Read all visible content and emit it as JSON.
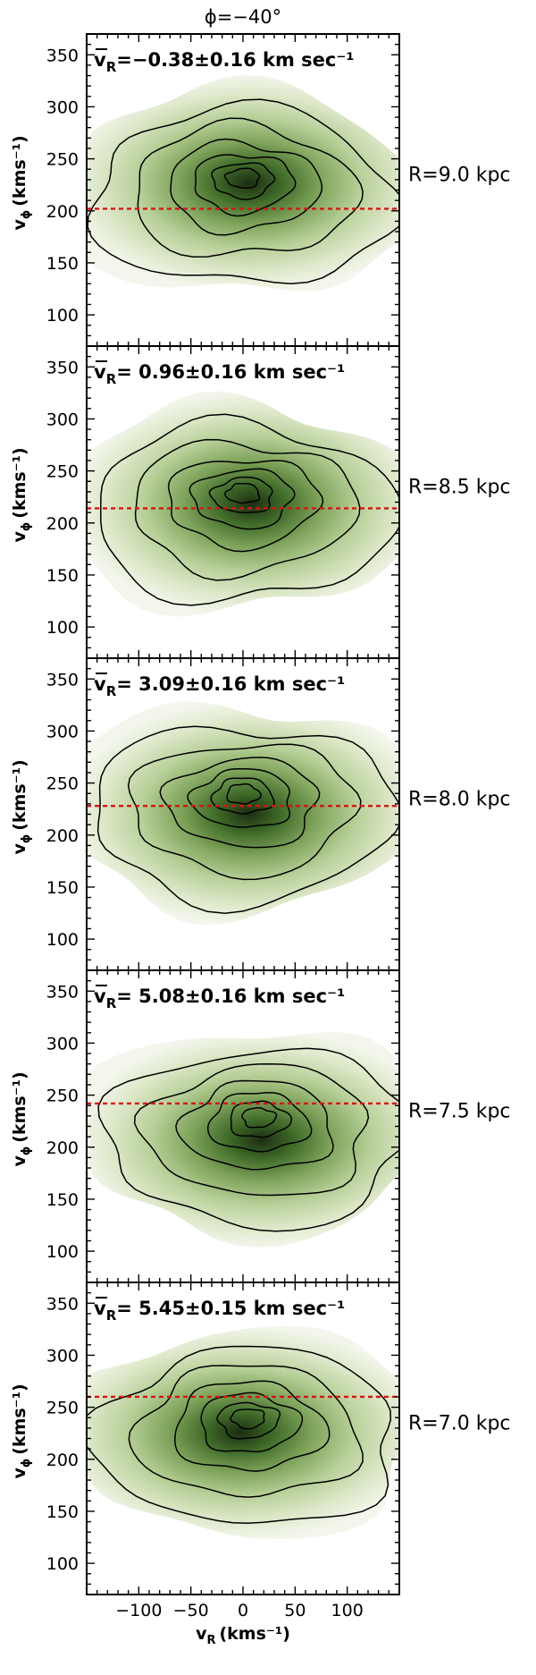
{
  "title": "ϕ=−40°",
  "x_label": "v",
  "x_label_sub": "R",
  "x_label_unit": "(kms⁻¹)",
  "y_label": "v",
  "y_label_sub": "ϕ",
  "y_label_unit": "(kms⁻¹)",
  "mean_prefix": "v",
  "mean_sub": "R",
  "mean_unit": "km sec⁻¹",
  "colors": {
    "fill_light": "#eef3e3",
    "fill_dark": "#1c2d12",
    "contour": "#000000",
    "ref_line": "#dd1111"
  },
  "chart_data": [
    {
      "type": "heatmap",
      "panel": 1,
      "radius_label": "R=9.0 kpc",
      "mean_value": "=−0.38±0.16",
      "xlim": [
        -150,
        150
      ],
      "ylim": [
        70,
        370
      ],
      "x_ticks": [
        -100,
        -50,
        0,
        50,
        100
      ],
      "x_tick_labels": [
        "−100",
        "−50",
        "0",
        "50",
        "100"
      ],
      "y_ticks": [
        100,
        150,
        200,
        250,
        300,
        350
      ],
      "reference_v_phi": 202,
      "density_peak": [
        0,
        225
      ]
    },
    {
      "type": "heatmap",
      "panel": 2,
      "radius_label": "R=8.5 kpc",
      "mean_value": "= 0.96±0.16",
      "xlim": [
        -150,
        150
      ],
      "ylim": [
        70,
        370
      ],
      "x_ticks": [
        -100,
        -50,
        0,
        50,
        100
      ],
      "x_tick_labels": [
        "−100",
        "−50",
        "0",
        "50",
        "100"
      ],
      "y_ticks": [
        100,
        150,
        200,
        250,
        300,
        350
      ],
      "reference_v_phi": 214,
      "density_peak": [
        0,
        222
      ]
    },
    {
      "type": "heatmap",
      "panel": 3,
      "radius_label": "R=8.0 kpc",
      "mean_value": "= 3.09±0.16",
      "xlim": [
        -150,
        150
      ],
      "ylim": [
        70,
        370
      ],
      "x_ticks": [
        -100,
        -50,
        0,
        50,
        100
      ],
      "x_tick_labels": [
        "−100",
        "−50",
        "0",
        "50",
        "100"
      ],
      "y_ticks": [
        100,
        150,
        200,
        250,
        300,
        350
      ],
      "reference_v_phi": 228,
      "density_peak": [
        0,
        233
      ]
    },
    {
      "type": "heatmap",
      "panel": 4,
      "radius_label": "R=7.5 kpc",
      "mean_value": "= 5.08±0.16",
      "xlim": [
        -150,
        150
      ],
      "ylim": [
        70,
        370
      ],
      "x_ticks": [
        -100,
        -50,
        0,
        50,
        100
      ],
      "x_tick_labels": [
        "−100",
        "−50",
        "0",
        "50",
        "100"
      ],
      "y_ticks": [
        100,
        150,
        200,
        250,
        300,
        350
      ],
      "reference_v_phi": 242,
      "density_peak": [
        15,
        222
      ]
    },
    {
      "type": "heatmap",
      "panel": 5,
      "radius_label": "R=7.0 kpc",
      "mean_value": "= 5.45±0.15",
      "xlim": [
        -150,
        150
      ],
      "ylim": [
        70,
        370
      ],
      "x_ticks": [
        -100,
        -50,
        0,
        50,
        100
      ],
      "x_tick_labels": [
        "−100",
        "−50",
        "0",
        "50",
        "100"
      ],
      "y_ticks": [
        100,
        150,
        200,
        250,
        300,
        350
      ],
      "reference_v_phi": 260,
      "density_peak": [
        5,
        233
      ]
    }
  ]
}
